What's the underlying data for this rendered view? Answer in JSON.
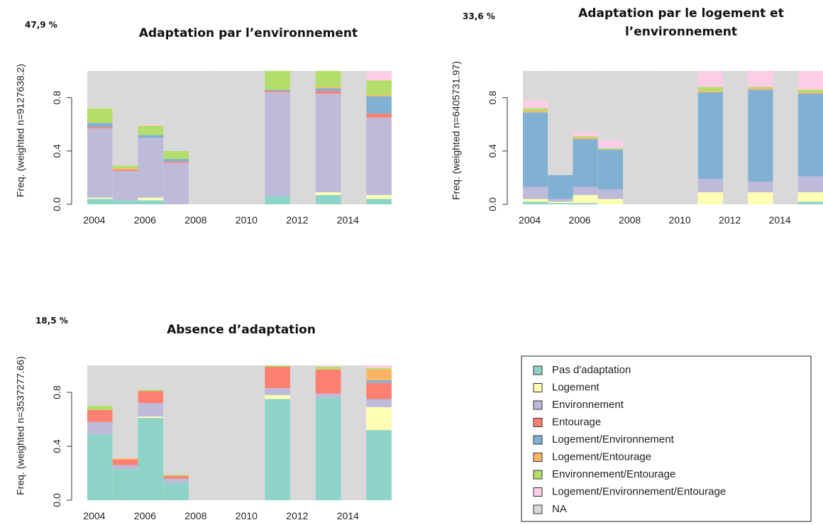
{
  "chart_data": [
    {
      "type": "bar",
      "stacked": true,
      "annotation": "47,9 %",
      "title": "Adaptation par l’environnement",
      "y_label": "Freq. (weighted n=9127638.2)",
      "x": [
        2004,
        2005,
        2006,
        2007,
        2008,
        2009,
        2010,
        2011,
        2012,
        2013,
        2014,
        2015
      ],
      "xlim": [
        2003.5,
        2015.5
      ],
      "xticks": [
        2004,
        2006,
        2008,
        2010,
        2012,
        2014
      ],
      "ylim": [
        0,
        1
      ],
      "yticks": [
        {
          "value": 0,
          "label": "0.0"
        },
        0.4,
        0.8
      ],
      "series": [
        {
          "name": "Pas d'adaptation",
          "color": "#8dd3c7",
          "values": [
            0.04,
            0.03,
            0.03,
            0,
            0,
            0,
            0,
            0.06,
            0,
            0.07,
            0,
            0.04
          ]
        },
        {
          "name": "Logement",
          "color": "#ffffb3",
          "values": [
            0.01,
            0,
            0.02,
            0,
            0,
            0,
            0,
            0,
            0,
            0.02,
            0,
            0.03
          ]
        },
        {
          "name": "Environnement",
          "color": "#bebada",
          "values": [
            0.52,
            0.22,
            0.45,
            0.31,
            0,
            0,
            0,
            0.78,
            0,
            0.74,
            0,
            0.58
          ]
        },
        {
          "name": "Entourage",
          "color": "#fb8072",
          "values": [
            0.01,
            0.01,
            0,
            0.01,
            0,
            0,
            0,
            0.01,
            0,
            0.02,
            0,
            0.03
          ]
        },
        {
          "name": "Logement/Environnement",
          "color": "#80b1d3",
          "values": [
            0.03,
            0,
            0.02,
            0.02,
            0,
            0,
            0,
            0.01,
            0,
            0.02,
            0,
            0.13
          ]
        },
        {
          "name": "Logement/Entourage",
          "color": "#fdb462",
          "values": [
            0,
            0.01,
            0,
            0,
            0,
            0,
            0,
            0,
            0,
            0.01,
            0,
            0.01
          ]
        },
        {
          "name": "Environnement/Entourage",
          "color": "#b3de69",
          "values": [
            0.11,
            0.02,
            0.07,
            0.06,
            0,
            0,
            0,
            0.14,
            0,
            0.12,
            0,
            0.11
          ]
        },
        {
          "name": "Logement/Environnement/Entourage",
          "color": "#fccde5",
          "values": [
            0,
            0,
            0.01,
            0,
            0,
            0,
            0,
            0,
            0,
            0,
            0,
            0.07
          ]
        },
        {
          "name": "NA",
          "color": "#d9d9d9",
          "values": [
            0.28,
            0.71,
            0.4,
            0.6,
            1,
            1,
            1,
            0,
            1,
            0,
            1,
            0
          ]
        }
      ]
    },
    {
      "type": "bar",
      "stacked": true,
      "annotation": "33,6 %",
      "title": "Adaptation par le logement et l’environnement",
      "y_label": "Freq. (weighted n=6405731.97)",
      "x": [
        2004,
        2005,
        2006,
        2007,
        2008,
        2009,
        2010,
        2011,
        2012,
        2013,
        2014,
        2015
      ],
      "xlim": [
        2003.5,
        2015.5
      ],
      "xticks": [
        2004,
        2006,
        2008,
        2010,
        2012,
        2014
      ],
      "ylim": [
        0,
        1
      ],
      "yticks": [
        {
          "value": 0,
          "label": "0.0"
        },
        0.4,
        0.8
      ],
      "series": [
        {
          "name": "Pas d'adaptation",
          "color": "#8dd3c7",
          "values": [
            0.02,
            0.01,
            0.01,
            0,
            0,
            0,
            0,
            0,
            0,
            0,
            0,
            0.02
          ]
        },
        {
          "name": "Logement",
          "color": "#ffffb3",
          "values": [
            0.02,
            0.01,
            0.06,
            0.04,
            0,
            0,
            0,
            0.09,
            0,
            0.09,
            0,
            0.07
          ]
        },
        {
          "name": "Environnement",
          "color": "#bebada",
          "values": [
            0.09,
            0.02,
            0.06,
            0.07,
            0,
            0,
            0,
            0.1,
            0,
            0.08,
            0,
            0.12
          ]
        },
        {
          "name": "Entourage",
          "color": "#fb8072",
          "values": [
            0,
            0,
            0,
            0,
            0,
            0,
            0,
            0,
            0,
            0,
            0,
            0
          ]
        },
        {
          "name": "Logement/Environnement",
          "color": "#80b1d3",
          "values": [
            0.56,
            0.18,
            0.36,
            0.3,
            0,
            0,
            0,
            0.65,
            0,
            0.69,
            0,
            0.62
          ]
        },
        {
          "name": "Logement/Entourage",
          "color": "#fdb462",
          "values": [
            0.01,
            0,
            0.01,
            0,
            0,
            0,
            0,
            0.01,
            0,
            0.01,
            0,
            0.01
          ]
        },
        {
          "name": "Environnement/Entourage",
          "color": "#b3de69",
          "values": [
            0.02,
            0,
            0.01,
            0.01,
            0,
            0,
            0,
            0.03,
            0,
            0.01,
            0,
            0.02
          ]
        },
        {
          "name": "Logement/Environnement/Entourage",
          "color": "#fccde5",
          "values": [
            0.06,
            0,
            0.03,
            0.06,
            0,
            0,
            0,
            0.12,
            0,
            0.12,
            0,
            0.14
          ]
        },
        {
          "name": "NA",
          "color": "#d9d9d9",
          "values": [
            0.22,
            0.78,
            0.46,
            0.52,
            1,
            1,
            1,
            0,
            1,
            0,
            1,
            0
          ]
        }
      ]
    },
    {
      "type": "bar",
      "stacked": true,
      "annotation": "18,5 %",
      "title": "Absence d’adaptation",
      "y_label": "Freq. (weighted n=3537277.66)",
      "x": [
        2004,
        2005,
        2006,
        2007,
        2008,
        2009,
        2010,
        2011,
        2012,
        2013,
        2014,
        2015
      ],
      "xlim": [
        2003.5,
        2015.5
      ],
      "xticks": [
        2004,
        2006,
        2008,
        2010,
        2012,
        2014
      ],
      "ylim": [
        0,
        1
      ],
      "yticks": [
        {
          "value": 0,
          "label": "0.0"
        },
        0.4,
        0.8
      ],
      "series": [
        {
          "name": "Pas d'adaptation",
          "color": "#8dd3c7",
          "values": [
            0.49,
            0.23,
            0.61,
            0.13,
            0,
            0,
            0,
            0.75,
            0,
            0.76,
            0,
            0.52
          ]
        },
        {
          "name": "Logement",
          "color": "#ffffb3",
          "values": [
            0,
            0,
            0.01,
            0,
            0,
            0,
            0,
            0.03,
            0,
            0,
            0,
            0.17
          ]
        },
        {
          "name": "Environnement",
          "color": "#bebada",
          "values": [
            0.09,
            0.03,
            0.1,
            0.03,
            0,
            0,
            0,
            0.05,
            0,
            0.03,
            0,
            0.06
          ]
        },
        {
          "name": "Entourage",
          "color": "#fb8072",
          "values": [
            0.09,
            0.04,
            0.09,
            0.02,
            0,
            0,
            0,
            0.16,
            0,
            0.18,
            0,
            0.12
          ]
        },
        {
          "name": "Logement/Environnement",
          "color": "#80b1d3",
          "values": [
            0,
            0,
            0,
            0,
            0,
            0,
            0,
            0,
            0,
            0,
            0,
            0.02
          ]
        },
        {
          "name": "Logement/Entourage",
          "color": "#fdb462",
          "values": [
            0,
            0.01,
            0,
            0,
            0,
            0,
            0,
            0,
            0,
            0,
            0,
            0.08
          ]
        },
        {
          "name": "Environnement/Entourage",
          "color": "#b3de69",
          "values": [
            0.03,
            0,
            0.01,
            0.01,
            0,
            0,
            0,
            0.01,
            0,
            0.02,
            0,
            0.01
          ]
        },
        {
          "name": "Logement/Environnement/Entourage",
          "color": "#fccde5",
          "values": [
            0,
            0,
            0,
            0,
            0,
            0,
            0,
            0,
            0,
            0.01,
            0,
            0.02
          ]
        },
        {
          "name": "NA",
          "color": "#d9d9d9",
          "values": [
            0.3,
            0.69,
            0.18,
            0.81,
            1,
            1,
            1,
            0,
            1,
            0,
            1,
            0
          ]
        }
      ]
    }
  ]
}
